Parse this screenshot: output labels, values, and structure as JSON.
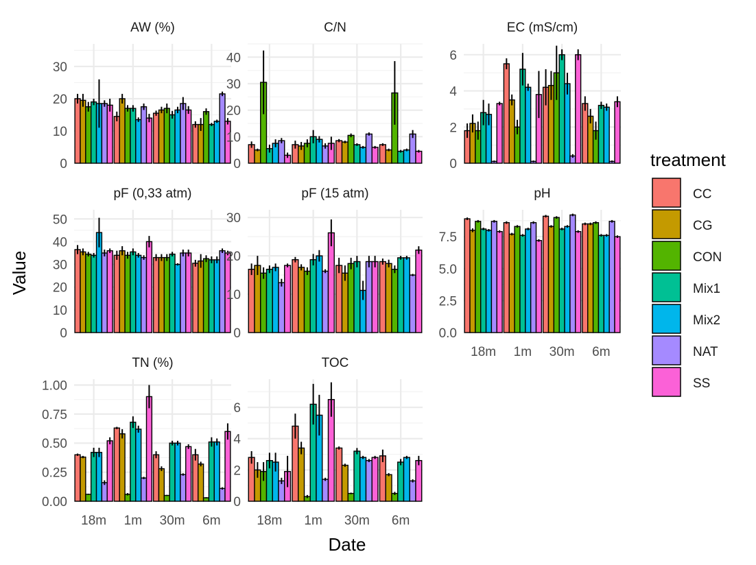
{
  "chart_data": {
    "type": "bar",
    "xlabel": "Date",
    "ylabel": "Value",
    "categories": [
      "18m",
      "1m",
      "30m",
      "6m"
    ],
    "legend": {
      "title": "treatment",
      "position": "right",
      "items": [
        {
          "name": "CC",
          "color": "#F8766D"
        },
        {
          "name": "CG",
          "color": "#C49A00"
        },
        {
          "name": "CON",
          "color": "#53B400"
        },
        {
          "name": "Mix1",
          "color": "#00C094"
        },
        {
          "name": "Mix2",
          "color": "#00B6EB"
        },
        {
          "name": "NAT",
          "color": "#A58AFF"
        },
        {
          "name": "SS",
          "color": "#FB61D7"
        }
      ]
    },
    "grid": true,
    "facets": [
      {
        "title": "AW (%)",
        "ylim": [
          0,
          37
        ],
        "yticks": [
          0,
          10,
          20,
          30
        ],
        "tick_labels": [
          "0",
          "10",
          "20",
          "30"
        ],
        "values": [
          [
            20,
            19.5,
            17.5,
            19,
            18.5,
            18.5,
            18
          ],
          [
            14.5,
            20,
            17,
            17,
            13.5,
            17.5,
            14
          ],
          [
            15.5,
            16.5,
            17,
            15,
            16.5,
            18.5,
            16.5
          ],
          [
            12,
            12,
            16,
            12,
            13,
            21.5,
            13
          ]
        ],
        "errors": [
          [
            1.5,
            2,
            1.5,
            1,
            7.5,
            1,
            2
          ],
          [
            1.5,
            1.5,
            1,
            1,
            0.7,
            1,
            1.3
          ],
          [
            0.8,
            1,
            1.5,
            1.2,
            1,
            2,
            1.2
          ],
          [
            1,
            2,
            1,
            0.5,
            0.5,
            0.7,
            1
          ]
        ]
      },
      {
        "title": "C/N",
        "ylim": [
          0,
          45
        ],
        "yticks": [
          0,
          10,
          20,
          30,
          40
        ],
        "tick_labels": [
          "0",
          "10",
          "20",
          "30",
          "40"
        ],
        "values": [
          [
            7,
            5,
            30.5,
            5.5,
            7.5,
            8.5,
            3
          ],
          [
            7,
            6.5,
            7.5,
            10,
            9,
            6.5,
            7.5
          ],
          [
            8.5,
            8,
            10.5,
            7,
            6,
            11,
            6
          ],
          [
            7,
            5,
            26.5,
            4.5,
            5,
            11,
            4.5
          ]
        ],
        "errors": [
          [
            1.2,
            0.5,
            12,
            1.5,
            1.5,
            1,
            1
          ],
          [
            1.5,
            1.5,
            1.5,
            2.5,
            1.2,
            1,
            2.5
          ],
          [
            0.6,
            0.5,
            0.7,
            0.5,
            0.5,
            0.6,
            0.5
          ],
          [
            0.5,
            0.5,
            12,
            0.5,
            0.5,
            1.5,
            0.5
          ]
        ]
      },
      {
        "title": "EC (mS/cm)",
        "ylim": [
          0,
          6.6
        ],
        "yticks": [
          0,
          2,
          4,
          6
        ],
        "tick_labels": [
          "0",
          "2",
          "4",
          "6"
        ],
        "values": [
          [
            1.8,
            2.2,
            1.8,
            2.8,
            2.7,
            0.1,
            3.3
          ],
          [
            5.5,
            3.5,
            2,
            5.2,
            4.2,
            0.1,
            3.8
          ],
          [
            4.2,
            4.3,
            5,
            6,
            4.4,
            0.4,
            6
          ],
          [
            3.3,
            2.6,
            1.8,
            3.2,
            3.1,
            0.1,
            3.4
          ]
        ],
        "errors": [
          [
            0.4,
            0.5,
            0.5,
            0.7,
            0.6,
            0.05,
            0.1
          ],
          [
            0.3,
            0.3,
            0.4,
            0.9,
            0.2,
            0.05,
            1.3
          ],
          [
            1,
            0.8,
            1.5,
            0.3,
            0.6,
            0.1,
            0.3
          ],
          [
            0.4,
            0.4,
            0.5,
            0.2,
            0.2,
            0.05,
            0.3
          ]
        ]
      },
      {
        "title": "pF (0,33 atm)",
        "ylim": [
          0,
          54
        ],
        "yticks": [
          0,
          10,
          20,
          30,
          40,
          50
        ],
        "tick_labels": [
          "0",
          "10",
          "20",
          "30",
          "40",
          "50"
        ],
        "values": [
          [
            36.5,
            35.5,
            34.5,
            34,
            44,
            35,
            36
          ],
          [
            34,
            36,
            34,
            35.5,
            34,
            33,
            40
          ],
          [
            33,
            33,
            33,
            34.5,
            30,
            35,
            35
          ],
          [
            30.5,
            31.5,
            32.5,
            32,
            32,
            36,
            35
          ]
        ],
        "errors": [
          [
            2,
            1.5,
            1,
            1,
            6.5,
            1.5,
            1
          ],
          [
            2,
            2,
            1.5,
            1.5,
            1,
            1,
            2.5
          ],
          [
            1.5,
            1.5,
            1.5,
            1,
            0.5,
            1.5,
            1.5
          ],
          [
            1.5,
            3,
            1.5,
            1.5,
            1.5,
            1,
            1
          ]
        ]
      },
      {
        "title": "pF (15 atm)",
        "ylim": [
          0,
          32
        ],
        "yticks": [
          0,
          10,
          20,
          30
        ],
        "tick_labels": [
          "0",
          "10",
          "20",
          "30"
        ],
        "values": [
          [
            16.5,
            17.5,
            15.5,
            16.5,
            17,
            13,
            17.5
          ],
          [
            19,
            17,
            16,
            19,
            20,
            16,
            26
          ],
          [
            17.5,
            15.5,
            18,
            18.5,
            11,
            18.5,
            18.5
          ],
          [
            18.5,
            18,
            16.5,
            19.5,
            19.5,
            15,
            21.5
          ]
        ],
        "errors": [
          [
            1.5,
            2.5,
            1.5,
            1,
            1,
            1,
            0.5
          ],
          [
            0.7,
            0.8,
            1,
            1.5,
            1.5,
            0.5,
            3.5
          ],
          [
            2,
            2,
            1.5,
            1.5,
            2.5,
            1.5,
            1.5
          ],
          [
            0.8,
            1,
            1,
            0.5,
            0.5,
            0.3,
            1
          ]
        ]
      },
      {
        "title": "pH",
        "ylim": [
          0,
          9.6
        ],
        "yticks": [
          0,
          2.5,
          5,
          7.5
        ],
        "tick_labels": [
          "0.0",
          "2.5",
          "5.0",
          "7.5"
        ],
        "values": [
          [
            8.9,
            8,
            8.7,
            8.1,
            8,
            8.7,
            7.9
          ],
          [
            8.6,
            7.7,
            8.3,
            7.6,
            8.1,
            8.6,
            7.2
          ],
          [
            9.1,
            8.3,
            9,
            8.1,
            8.3,
            9.2,
            7.9
          ],
          [
            8.5,
            8.5,
            8.6,
            7.6,
            7.6,
            8.7,
            7.5
          ]
        ],
        "errors": [
          [
            0.1,
            0.15,
            0.1,
            0.1,
            0.1,
            0.1,
            0.1
          ],
          [
            0.1,
            0.1,
            0.1,
            0.1,
            0.1,
            0.1,
            0.1
          ],
          [
            0.1,
            0.1,
            0.1,
            0.1,
            0.1,
            0.1,
            0.1
          ],
          [
            0.1,
            0.1,
            0.1,
            0.1,
            0.1,
            0.1,
            0.1
          ]
        ]
      },
      {
        "title": "TN (%)",
        "ylim": [
          0,
          1.05
        ],
        "yticks": [
          0,
          0.25,
          0.5,
          0.75,
          1
        ],
        "tick_labels": [
          "0.00",
          "0.25",
          "0.50",
          "0.75",
          "1.00"
        ],
        "values": [
          [
            0.4,
            0.38,
            0.06,
            0.42,
            0.42,
            0.16,
            0.52
          ],
          [
            0.63,
            0.58,
            0.06,
            0.68,
            0.62,
            0.2,
            0.9
          ],
          [
            0.4,
            0.28,
            0.05,
            0.5,
            0.5,
            0.23,
            0.47
          ],
          [
            0.4,
            0.32,
            0.03,
            0.51,
            0.51,
            0.11,
            0.6
          ]
        ],
        "errors": [
          [
            0.01,
            0.01,
            0.005,
            0.04,
            0.04,
            0.02,
            0.03
          ],
          [
            0.01,
            0.04,
            0.01,
            0.05,
            0.03,
            0.01,
            0.1
          ],
          [
            0.03,
            0.02,
            0.005,
            0.02,
            0.02,
            0.01,
            0.02
          ],
          [
            0.05,
            0.02,
            0.005,
            0.04,
            0.03,
            0.01,
            0.07
          ]
        ]
      },
      {
        "title": "TOC",
        "ylim": [
          0,
          7.8
        ],
        "yticks": [
          0,
          2,
          4,
          6
        ],
        "tick_labels": [
          "0",
          "2",
          "4",
          "6"
        ],
        "values": [
          [
            2.8,
            2,
            1.9,
            2.6,
            2.5,
            1.3,
            1.9
          ],
          [
            4.8,
            3.4,
            0.3,
            6.2,
            5.5,
            1.4,
            6.5
          ],
          [
            3.4,
            2.3,
            0.5,
            3.2,
            2.8,
            2.6,
            2.8
          ],
          [
            2.9,
            1.7,
            0.5,
            2.5,
            2.8,
            1.3,
            2.6
          ]
        ],
        "errors": [
          [
            0.4,
            0.5,
            0.6,
            0.5,
            0.6,
            0.2,
            1
          ],
          [
            0.8,
            0.4,
            0.1,
            1.3,
            1.3,
            0.1,
            1.1
          ],
          [
            0.1,
            0.1,
            0.05,
            0.2,
            0.1,
            0.1,
            0.1
          ],
          [
            0.4,
            0.1,
            0.1,
            0.2,
            0.1,
            0.1,
            0.3
          ]
        ]
      }
    ]
  }
}
